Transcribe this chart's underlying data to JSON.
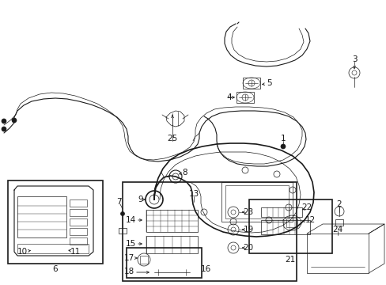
{
  "bg_color": "#ffffff",
  "lc": "#1a1a1a",
  "lw_main": 1.2,
  "lw_med": 0.8,
  "lw_thin": 0.5,
  "label_fs": 7.5,
  "figw": 4.89,
  "figh": 3.6,
  "dpi": 100
}
